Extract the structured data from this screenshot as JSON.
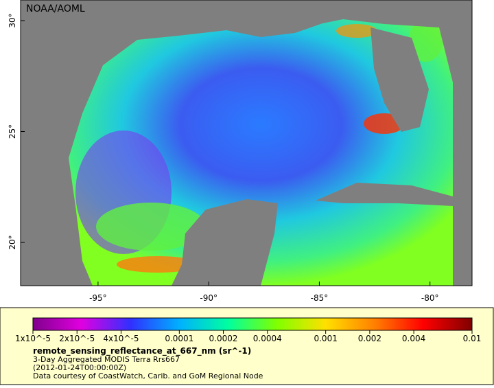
{
  "map": {
    "credit": "NOAA/AOML",
    "xlim": [
      -98.5,
      -78.1
    ],
    "ylim": [
      18.05,
      30.93
    ],
    "xticks": [
      {
        "value": -95,
        "label": "-95°"
      },
      {
        "value": -90,
        "label": "-90°"
      },
      {
        "value": -85,
        "label": "-85°"
      },
      {
        "value": -80,
        "label": "-80°"
      }
    ],
    "yticks": [
      {
        "value": 20,
        "label": "20°"
      },
      {
        "value": 25,
        "label": "25°"
      },
      {
        "value": 30,
        "label": "30°"
      }
    ]
  },
  "legend": {
    "title": "remote_sensing_reflectance_at_667_nm (sr^-1)",
    "lines": [
      "3-Day Aggregated MODIS Terra Rrs667",
      "(2012-01-24T00:00:00Z)",
      "Data courtesy of CoastWatch, Carib. and GoM Regional Node"
    ],
    "colorbar": {
      "lim": [
        1e-05,
        0.01
      ],
      "scale": "log",
      "colors": [
        "#80008c",
        "#e000e0",
        "#3030ff",
        "#00b0ff",
        "#00ffa0",
        "#80ff00",
        "#ffe000",
        "#ff8000",
        "#ff0000",
        "#800000"
      ],
      "ticks": [
        {
          "value": 1e-05,
          "label": "1x10^-5"
        },
        {
          "value": 2e-05,
          "label": "2x10^-5"
        },
        {
          "value": 4e-05,
          "label": "4x10^-5"
        },
        0.0001,
        0.0002,
        0.0004,
        0.001,
        0.002,
        0.004,
        0.01
      ]
    }
  }
}
